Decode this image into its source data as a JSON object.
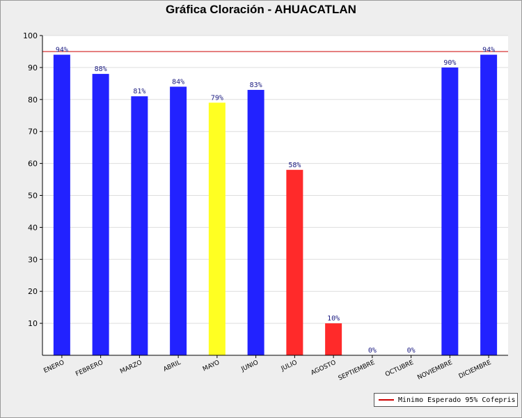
{
  "chart_data": {
    "type": "bar",
    "title": "Gráfica Cloración - AHUACATLAN",
    "xlabel": "",
    "ylabel": "",
    "ylim": [
      0,
      100
    ],
    "yticks": [
      10,
      20,
      30,
      40,
      50,
      60,
      70,
      80,
      90,
      100
    ],
    "categories": [
      "ENERO",
      "FEBRERO",
      "MARZO",
      "ABRIL",
      "MAYO",
      "JUNIO",
      "JULIO",
      "AGOSTO",
      "SEPTIEMBRE",
      "OCTUBRE",
      "NOVIEMBRE",
      "DICIEMBRE"
    ],
    "values": [
      94,
      88,
      81,
      84,
      79,
      83,
      58,
      10,
      0,
      0,
      90,
      94
    ],
    "value_labels": [
      "94%",
      "88%",
      "81%",
      "84%",
      "79%",
      "83%",
      "58%",
      "10%",
      "0%",
      "0%",
      "90%",
      "94%"
    ],
    "bar_colors": [
      "#2222ff",
      "#2222ff",
      "#2222ff",
      "#2222ff",
      "#ffff22",
      "#2222ff",
      "#ff2a2a",
      "#ff2a2a",
      "#2222ff",
      "#2222ff",
      "#2222ff",
      "#2222ff"
    ],
    "reference_line": {
      "value": 95,
      "color": "#cc0000",
      "label": "Minimo Esperado 95% Cofepris"
    },
    "legend_position": "bottom-right",
    "grid": true
  }
}
